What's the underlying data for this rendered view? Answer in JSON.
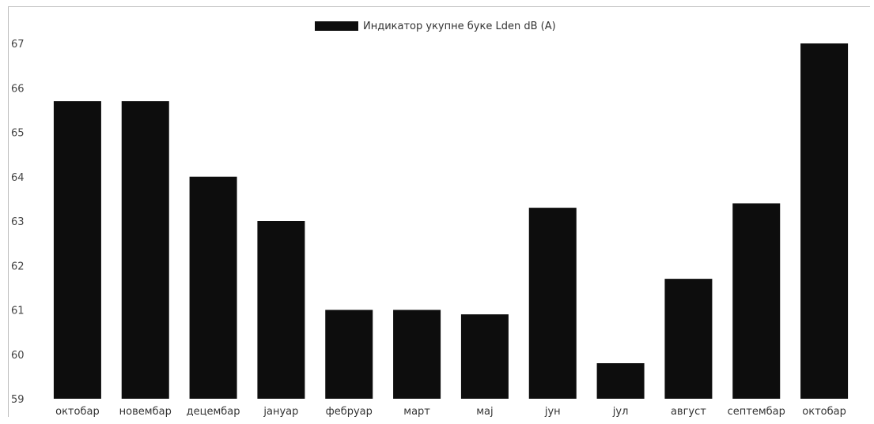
{
  "chart_data": {
    "type": "bar",
    "legend": {
      "label": "Индикатор укупне буке Lden dB (A)",
      "color": "#0d0d0d",
      "position": "top-center"
    },
    "categories": [
      "октобар",
      "новембар",
      "децембар",
      "јануар",
      "фебруар",
      "март",
      "мај",
      "јун",
      "јул",
      "август",
      "септембар",
      "октобар"
    ],
    "values": [
      65.7,
      65.7,
      64.0,
      63.0,
      61.0,
      61.0,
      60.9,
      63.3,
      59.8,
      61.7,
      63.4,
      67.0
    ],
    "ylim": [
      59,
      67
    ],
    "yticks": [
      59,
      60,
      61,
      62,
      63,
      64,
      65,
      66,
      67
    ],
    "grid": false,
    "bar_color": "#0d0d0d"
  }
}
